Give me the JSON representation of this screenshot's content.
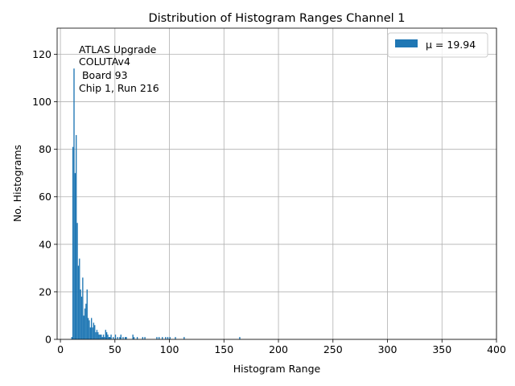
{
  "chart_data": {
    "type": "bar",
    "title": "Distribution of Histogram Ranges Channel 1",
    "xlabel": "Histogram Range",
    "ylabel": "No. Histograms",
    "xlim": [
      -3,
      400
    ],
    "ylim": [
      0,
      131
    ],
    "xticks": [
      0,
      50,
      100,
      150,
      200,
      250,
      300,
      350,
      400
    ],
    "yticks": [
      0,
      20,
      40,
      60,
      80,
      100,
      120
    ],
    "grid": true,
    "bar_color": "#1f77b4",
    "legend": {
      "label": "$\\mu$ = 19.94",
      "display_label": "μ = 19.94",
      "position": "upper right"
    },
    "annotation": [
      "ATLAS Upgrade",
      "COLUTAv4",
      " Board 93",
      "Chip 1, Run 216"
    ],
    "bin_width": 1,
    "bins": [
      {
        "x": 10,
        "y": 1
      },
      {
        "x": 11,
        "y": 81
      },
      {
        "x": 12,
        "y": 114
      },
      {
        "x": 13,
        "y": 70
      },
      {
        "x": 14,
        "y": 86
      },
      {
        "x": 15,
        "y": 49
      },
      {
        "x": 16,
        "y": 31
      },
      {
        "x": 17,
        "y": 34
      },
      {
        "x": 18,
        "y": 21
      },
      {
        "x": 19,
        "y": 18
      },
      {
        "x": 20,
        "y": 26
      },
      {
        "x": 21,
        "y": 10
      },
      {
        "x": 22,
        "y": 13
      },
      {
        "x": 23,
        "y": 15
      },
      {
        "x": 24,
        "y": 21
      },
      {
        "x": 25,
        "y": 9
      },
      {
        "x": 26,
        "y": 8
      },
      {
        "x": 27,
        "y": 5
      },
      {
        "x": 28,
        "y": 9
      },
      {
        "x": 29,
        "y": 5
      },
      {
        "x": 30,
        "y": 7
      },
      {
        "x": 31,
        "y": 6
      },
      {
        "x": 32,
        "y": 3
      },
      {
        "x": 33,
        "y": 4
      },
      {
        "x": 34,
        "y": 3
      },
      {
        "x": 35,
        "y": 2
      },
      {
        "x": 36,
        "y": 2
      },
      {
        "x": 37,
        "y": 2
      },
      {
        "x": 38,
        "y": 1
      },
      {
        "x": 39,
        "y": 2
      },
      {
        "x": 40,
        "y": 1
      },
      {
        "x": 41,
        "y": 4
      },
      {
        "x": 42,
        "y": 3
      },
      {
        "x": 43,
        "y": 2
      },
      {
        "x": 44,
        "y": 1
      },
      {
        "x": 45,
        "y": 1
      },
      {
        "x": 46,
        "y": 2
      },
      {
        "x": 48,
        "y": 1
      },
      {
        "x": 50,
        "y": 2
      },
      {
        "x": 52,
        "y": 1
      },
      {
        "x": 54,
        "y": 1
      },
      {
        "x": 55,
        "y": 2
      },
      {
        "x": 57,
        "y": 1
      },
      {
        "x": 59,
        "y": 1
      },
      {
        "x": 60,
        "y": 1
      },
      {
        "x": 66,
        "y": 2
      },
      {
        "x": 67,
        "y": 1
      },
      {
        "x": 70,
        "y": 1
      },
      {
        "x": 75,
        "y": 1
      },
      {
        "x": 77,
        "y": 1
      },
      {
        "x": 88,
        "y": 1
      },
      {
        "x": 90,
        "y": 1
      },
      {
        "x": 93,
        "y": 1
      },
      {
        "x": 96,
        "y": 1
      },
      {
        "x": 98,
        "y": 1
      },
      {
        "x": 100,
        "y": 1
      },
      {
        "x": 105,
        "y": 1
      },
      {
        "x": 113,
        "y": 1
      },
      {
        "x": 164,
        "y": 1
      }
    ]
  }
}
